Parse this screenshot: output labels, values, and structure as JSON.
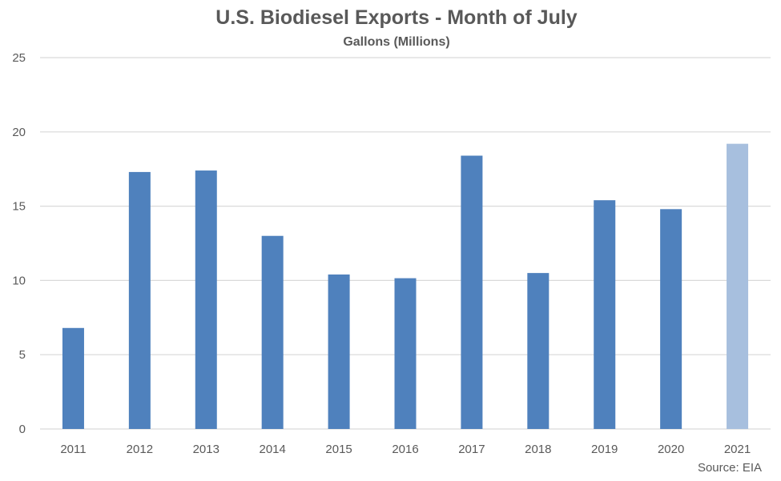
{
  "chart_data": {
    "type": "bar",
    "title": "U.S. Biodiesel Exports - Month of July",
    "subtitle": "Gallons (Millions)",
    "xlabel": "",
    "ylabel": "",
    "categories": [
      "2011",
      "2012",
      "2013",
      "2014",
      "2015",
      "2016",
      "2017",
      "2018",
      "2019",
      "2020",
      "2021"
    ],
    "values": [
      6.8,
      17.3,
      17.4,
      13.0,
      10.4,
      10.15,
      18.4,
      10.5,
      15.4,
      14.8,
      19.2
    ],
    "ylim": [
      0,
      25
    ],
    "yticks": [
      "0",
      "5",
      "10",
      "15",
      "20",
      "25"
    ],
    "grid": true,
    "legend": "none",
    "colors": {
      "bar": "#4f81bd",
      "bar_highlight": "#a7bfde",
      "grid": "#d9d9d9",
      "text": "#595959"
    },
    "highlight_index": 10
  },
  "source": "Source: EIA"
}
